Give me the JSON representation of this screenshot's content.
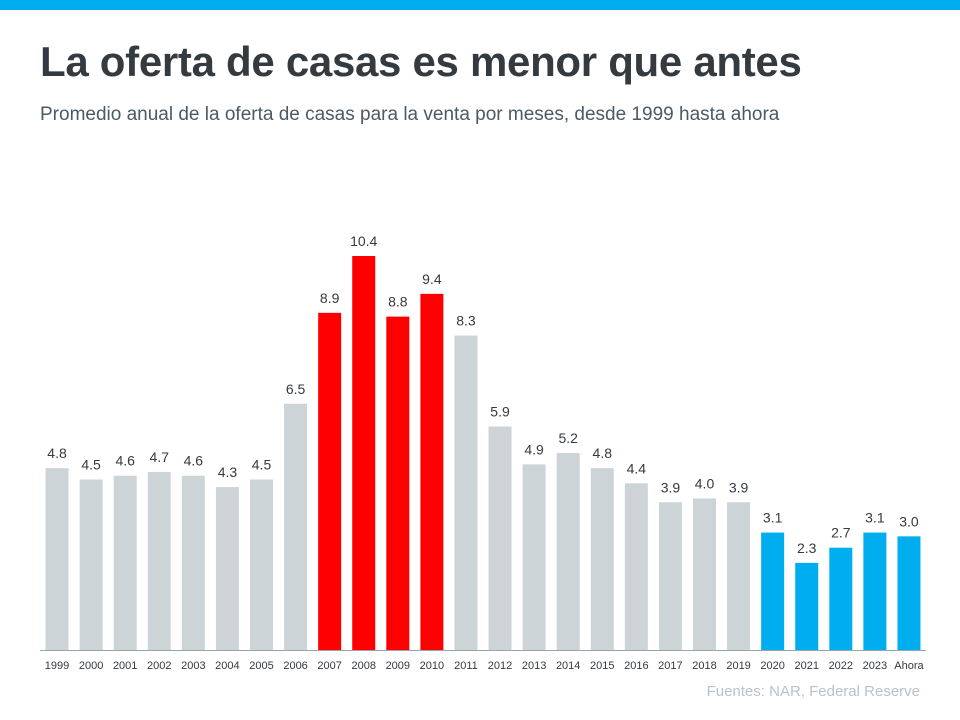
{
  "title": "La oferta de casas es menor que antes",
  "subtitle": "Promedio anual de la oferta de casas para la venta por meses, desde 1999 hasta ahora",
  "source": "Fuentes: NAR, Federal Reserve",
  "colors": {
    "gray": "#cdd4d8",
    "red": "#ff0000",
    "blue": "#00aeef",
    "accent_bar": "#00aeef"
  },
  "chart_data": {
    "type": "bar",
    "categories": [
      "1999",
      "2000",
      "2001",
      "2002",
      "2003",
      "2004",
      "2005",
      "2006",
      "2007",
      "2008",
      "2009",
      "2010",
      "2011",
      "2012",
      "2013",
      "2014",
      "2015",
      "2016",
      "2017",
      "2018",
      "2019",
      "2020",
      "2021",
      "2022",
      "2023",
      "Ahora"
    ],
    "values": [
      4.8,
      4.5,
      4.6,
      4.7,
      4.6,
      4.3,
      4.5,
      6.5,
      8.9,
      10.4,
      8.8,
      9.4,
      8.3,
      5.9,
      4.9,
      5.2,
      4.8,
      4.4,
      3.9,
      4.0,
      3.9,
      3.1,
      2.3,
      2.7,
      3.1,
      3.0
    ],
    "value_labels": [
      "4.8",
      "4.5",
      "4.6",
      "4.7",
      "4.6",
      "4.3",
      "4.5",
      "6.5",
      "8.9",
      "10.4",
      "8.8",
      "9.4",
      "8.3",
      "5.9",
      "4.9",
      "5.2",
      "4.8",
      "4.4",
      "3.9",
      "4.0",
      "3.9",
      "3.1",
      "2.3",
      "2.7",
      "3.1",
      "3.0"
    ],
    "bar_colors": [
      "gray",
      "gray",
      "gray",
      "gray",
      "gray",
      "gray",
      "gray",
      "gray",
      "red",
      "red",
      "red",
      "red",
      "gray",
      "gray",
      "gray",
      "gray",
      "gray",
      "gray",
      "gray",
      "gray",
      "gray",
      "blue",
      "blue",
      "blue",
      "blue",
      "blue"
    ],
    "ylim": [
      0,
      10.4
    ],
    "grid": false,
    "xlabel": "",
    "ylabel": ""
  }
}
